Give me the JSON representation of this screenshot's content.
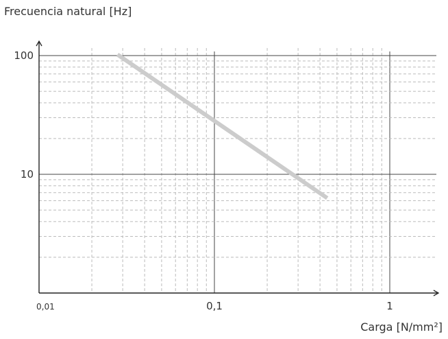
{
  "chart_data": {
    "type": "line",
    "title": "",
    "ylabel": "Frecuencia natural [Hz]",
    "xlabel": "Carga [N/mm²]",
    "x_scale": "log",
    "y_scale": "log",
    "xlim": [
      0.01,
      3.0
    ],
    "ylim": [
      1,
      120
    ],
    "x_ticks": [
      {
        "value": 0.01,
        "label": "0,01"
      },
      {
        "value": 0.1,
        "label": "0,1"
      },
      {
        "value": 1,
        "label": "1"
      }
    ],
    "y_ticks": [
      {
        "value": 10,
        "label": "10"
      },
      {
        "value": 100,
        "label": "100"
      }
    ],
    "grid": true,
    "series": [
      {
        "color": "#cccccc",
        "x": [
          0.028,
          0.44
        ],
        "y": [
          102,
          6.3
        ]
      }
    ]
  },
  "colors": {
    "axis": "#222222",
    "major_grid": "#444444",
    "minor_grid": "#bbbbbb",
    "text": "#333333"
  }
}
